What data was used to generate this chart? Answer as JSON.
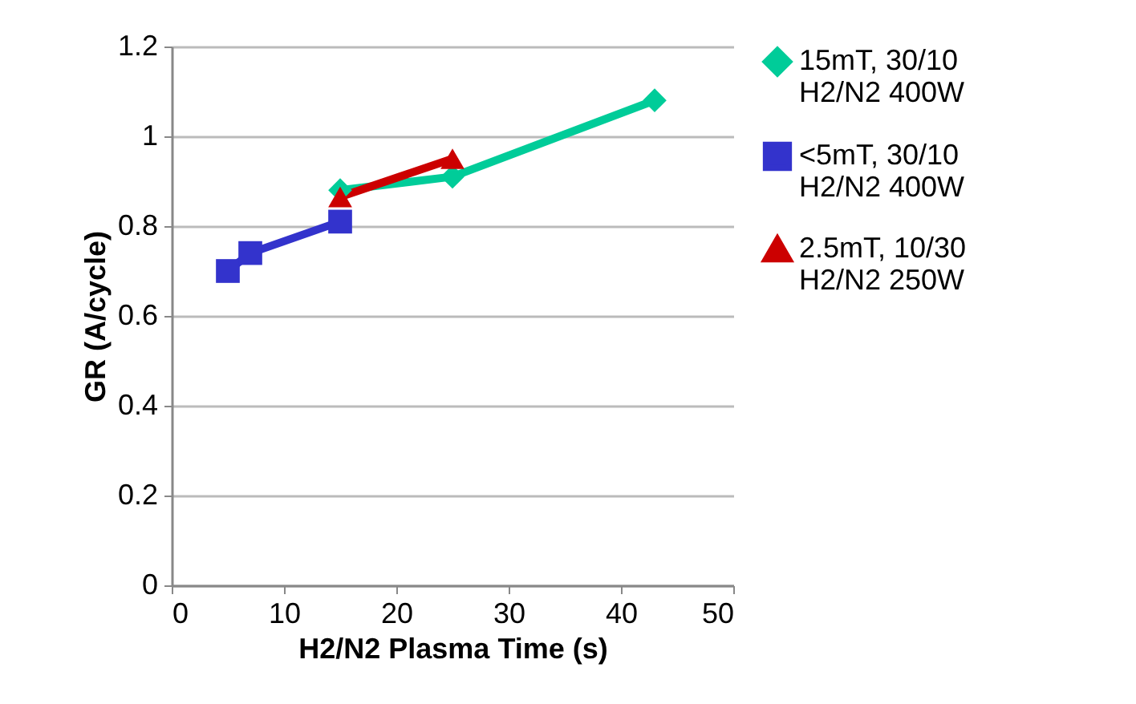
{
  "chart_data": {
    "type": "line",
    "xlabel": "H2/N2 Plasma Time (s)",
    "ylabel": "GR (A/cycle)",
    "series": [
      {
        "name": "15mT, 30/10\nH2/N2 400W",
        "color": "#00cc99",
        "marker": "diamond",
        "x": [
          15,
          25,
          43
        ],
        "values": [
          0.88,
          0.91,
          1.08
        ]
      },
      {
        "name": "<5mT, 30/10\nH2/N2 400W",
        "color": "#3333cc",
        "marker": "square",
        "x": [
          5,
          7,
          15
        ],
        "values": [
          0.7,
          0.74,
          0.81
        ]
      },
      {
        "name": "2.5mT, 10/30\nH2/N2  250W",
        "color": "#cc0000",
        "marker": "triangle",
        "x": [
          15,
          25
        ],
        "values": [
          0.865,
          0.95
        ]
      }
    ],
    "xlim": [
      0,
      50
    ],
    "xticks": [
      0,
      10,
      20,
      30,
      40,
      50
    ],
    "ylim": [
      0,
      1.2
    ],
    "yticks": [
      0,
      0.2,
      0.4,
      0.6,
      0.8,
      1,
      1.2
    ],
    "grid": "y",
    "legend": "right"
  }
}
